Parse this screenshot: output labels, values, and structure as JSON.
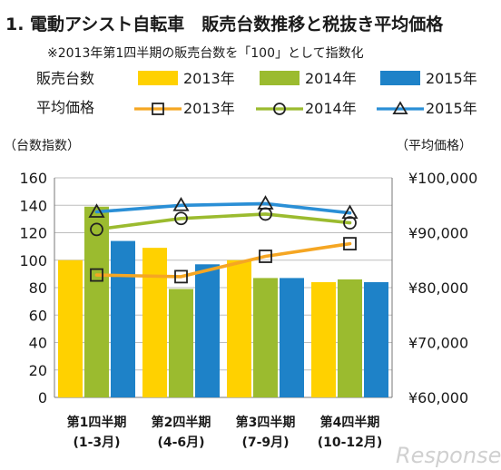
{
  "title": "1. 電動アシスト自転車　販売台数推移と税抜き平均価格",
  "note": "※2013年第1四半期の販売台数を「100」として指数化",
  "legend": {
    "bars_label": "販売台数",
    "lines_label": "平均価格"
  },
  "watermark": "Response.",
  "colors": {
    "2013": "#ffd100",
    "2014": "#9bbb2f",
    "2015": "#1e82c8",
    "line2013": "#f5a623",
    "line2014": "#9bbb2f",
    "line2015": "#2a8fd6",
    "grid": "#bdbdbd"
  },
  "chart_data": {
    "type": "bar",
    "categories": [
      "第1四半期\n(1-3月)",
      "第2四半期\n(4-6月)",
      "第3四半期\n(7-9月)",
      "第4四半期\n(10-12月)"
    ],
    "series": [
      {
        "name": "2013年",
        "values": [
          100,
          109,
          100,
          84
        ]
      },
      {
        "name": "2014年",
        "values": [
          139,
          79,
          87,
          86
        ]
      },
      {
        "name": "2015年",
        "values": [
          114,
          97,
          87,
          84
        ]
      }
    ],
    "line_series": [
      {
        "name": "2013年",
        "marker": "square",
        "values": [
          82300,
          82000,
          85700,
          88000
        ]
      },
      {
        "name": "2014年",
        "marker": "circle",
        "values": [
          90600,
          92600,
          93400,
          91800
        ]
      },
      {
        "name": "2015年",
        "marker": "triangle",
        "values": [
          93800,
          95000,
          95300,
          93600
        ]
      }
    ],
    "ylabel": "（台数指数）",
    "y2label": "（平均価格）",
    "ylim": [
      0,
      160
    ],
    "yticks": [
      "0",
      "20",
      "40",
      "60",
      "80",
      "100",
      "120",
      "140",
      "160"
    ],
    "y2lim": [
      60000,
      100000
    ],
    "y2ticks": [
      "¥60,000",
      "¥70,000",
      "¥80,000",
      "¥90,000",
      "¥100,000"
    ],
    "grid": true
  }
}
